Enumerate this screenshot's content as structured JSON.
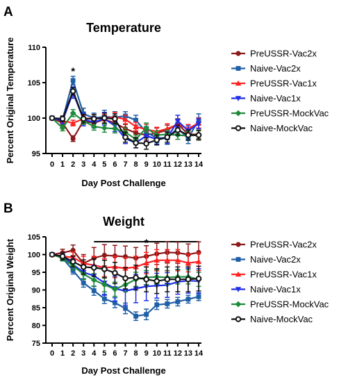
{
  "chart_data": [
    {
      "type": "line",
      "panel": "A",
      "title": "Temperature",
      "xlabel": "Day Post Challenge",
      "ylabel": "Percent Original Temperature",
      "ylim": [
        95,
        110
      ],
      "yticks": [
        95,
        100,
        105,
        110
      ],
      "x": [
        0,
        1,
        2,
        3,
        4,
        5,
        6,
        7,
        8,
        9,
        10,
        11,
        12,
        13,
        14
      ],
      "annotations": [
        {
          "text": "*",
          "x": 2,
          "y": 106.6
        }
      ],
      "legend": "right",
      "series": [
        {
          "name": "PreUSSR-Vac2x",
          "color": "#8b1a1a",
          "marker": "circle",
          "values": [
            100,
            99.3,
            97.1,
            99.6,
            99.3,
            99.8,
            99.3,
            98.5,
            97.9,
            97.6,
            97.9,
            98.3,
            99.2,
            97.7,
            97.7
          ],
          "errors": [
            0.2,
            0.4,
            0.4,
            0.5,
            0.5,
            0.6,
            0.7,
            0.6,
            0.6,
            0.7,
            0.7,
            0.7,
            0.7,
            0.6,
            0.6
          ]
        },
        {
          "name": "Naive-Vac2x",
          "color": "#1f5fa6",
          "marker": "square",
          "values": [
            100,
            99.8,
            105.3,
            100.6,
            100.0,
            100.2,
            100.1,
            100.3,
            99.7,
            98.0,
            97.2,
            97.2,
            98.6,
            97.1,
            99.8
          ],
          "errors": [
            0.2,
            0.4,
            0.6,
            0.8,
            0.7,
            0.9,
            0.8,
            0.6,
            0.7,
            0.8,
            0.7,
            0.9,
            0.8,
            0.7,
            0.8
          ]
        },
        {
          "name": "PreUSSR-Vac1x",
          "color": "#ff2020",
          "marker": "triangle",
          "values": [
            100,
            99.6,
            99.3,
            99.9,
            100.0,
            99.9,
            100.2,
            99.8,
            98.8,
            98.4,
            98.1,
            98.5,
            99.1,
            98.5,
            99.3
          ],
          "errors": [
            0.2,
            0.4,
            0.4,
            0.5,
            0.5,
            0.6,
            0.6,
            0.6,
            0.6,
            0.7,
            0.6,
            0.7,
            0.6,
            0.6,
            0.7
          ]
        },
        {
          "name": "Naive-Vac1x",
          "color": "#1f2ee8",
          "marker": "triangle-down",
          "values": [
            100,
            99.6,
            103.6,
            99.8,
            99.4,
            99.9,
            98.9,
            97.1,
            96.5,
            97.5,
            97.0,
            97.2,
            99.6,
            98.2,
            99.2
          ],
          "errors": [
            0.2,
            0.4,
            0.8,
            0.9,
            0.8,
            0.9,
            0.8,
            0.7,
            0.7,
            0.8,
            0.7,
            0.8,
            0.8,
            0.7,
            0.7
          ]
        },
        {
          "name": "PreUSSR-MockVac",
          "color": "#1f8a3a",
          "marker": "diamond",
          "values": [
            100,
            98.6,
            100.7,
            99.6,
            98.8,
            98.6,
            98.5,
            98.0,
            97.0,
            98.6,
            97.6,
            97.7,
            97.6,
            97.5,
            97.6
          ],
          "errors": [
            0.2,
            0.4,
            0.5,
            0.5,
            0.5,
            0.6,
            0.6,
            0.6,
            0.6,
            0.7,
            0.6,
            0.6,
            0.6,
            0.6,
            0.6
          ]
        },
        {
          "name": "Naive-MockVac",
          "color": "#111111",
          "marker": "circle-open",
          "values": [
            100,
            99.9,
            103.8,
            99.9,
            99.9,
            100.0,
            99.9,
            97.3,
            96.5,
            96.4,
            96.9,
            97.3,
            98.3,
            97.6,
            97.6
          ],
          "errors": [
            0.2,
            0.4,
            0.5,
            0.6,
            0.6,
            0.7,
            0.7,
            0.7,
            0.7,
            0.8,
            0.7,
            0.7,
            0.7,
            0.7,
            0.7
          ]
        }
      ]
    },
    {
      "type": "line",
      "panel": "B",
      "title": "Weight",
      "xlabel": "Day Post Challenge",
      "ylabel": "Percent Original Weight",
      "ylim": [
        75,
        105
      ],
      "yticks": [
        75,
        80,
        85,
        90,
        95,
        100,
        105
      ],
      "x": [
        0,
        1,
        2,
        3,
        4,
        5,
        6,
        7,
        8,
        9,
        10,
        11,
        12,
        13,
        14
      ],
      "annotations": [
        {
          "text": "*",
          "x": 9,
          "y": 103.3
        }
      ],
      "significance_bar": [
        4,
        14
      ],
      "legend": "right",
      "series": [
        {
          "name": "PreUSSR-Vac2x",
          "color": "#8b1a1a",
          "marker": "circle",
          "values": [
            100,
            100.5,
            101.2,
            97.5,
            99.0,
            99.8,
            99.6,
            99.4,
            99.0,
            99.5,
            100.2,
            100.6,
            100.5,
            100.0,
            100.6
          ],
          "errors": [
            0.3,
            1.0,
            1.5,
            2.5,
            3.0,
            3.0,
            3.0,
            3.0,
            3.0,
            3.0,
            3.0,
            3.0,
            3.0,
            3.0,
            3.0
          ]
        },
        {
          "name": "Naive-Vac2x",
          "color": "#1f5fa6",
          "marker": "square",
          "values": [
            100,
            99.0,
            95.5,
            92.0,
            89.8,
            87.5,
            86.4,
            84.8,
            82.6,
            83.1,
            85.8,
            86.1,
            86.7,
            87.4,
            88.1
          ],
          "errors": [
            0.3,
            0.8,
            1.0,
            1.2,
            1.3,
            1.3,
            1.4,
            1.5,
            1.2,
            1.5,
            1.3,
            1.2,
            1.2,
            1.1,
            1.1
          ]
        },
        {
          "name": "PreUSSR-Vac1x",
          "color": "#ff2020",
          "marker": "triangle",
          "values": [
            100,
            99.5,
            99.2,
            97.5,
            97.0,
            96.3,
            96.5,
            96.1,
            96.5,
            97.6,
            98.4,
            98.4,
            98.4,
            97.6,
            98.0
          ],
          "errors": [
            0.3,
            1.0,
            1.5,
            2.0,
            2.5,
            2.5,
            3.0,
            3.0,
            3.0,
            3.0,
            3.0,
            3.0,
            3.0,
            2.5,
            2.5
          ]
        },
        {
          "name": "Naive-Vac1x",
          "color": "#1f2ee8",
          "marker": "triangle-down",
          "values": [
            100,
            99.4,
            97.2,
            95.0,
            94.0,
            92.0,
            90.4,
            89.7,
            90.4,
            91.0,
            91.2,
            91.4,
            92.3,
            92.6,
            92.5
          ],
          "errors": [
            0.3,
            1.0,
            1.5,
            2.0,
            3.0,
            3.5,
            3.5,
            4.0,
            4.0,
            4.0,
            3.5,
            3.5,
            3.5,
            3.5,
            3.5
          ]
        },
        {
          "name": "PreUSSR-MockVac",
          "color": "#1f8a3a",
          "marker": "diamond",
          "values": [
            100,
            99.0,
            96.8,
            94.5,
            92.8,
            91.5,
            90.2,
            91.5,
            93.0,
            93.5,
            93.7,
            93.5,
            93.7,
            93.7,
            93.0
          ],
          "errors": [
            0.3,
            0.8,
            1.2,
            1.5,
            1.8,
            2.0,
            2.0,
            2.0,
            2.0,
            2.0,
            2.0,
            2.0,
            2.0,
            2.0,
            2.0
          ]
        },
        {
          "name": "Naive-MockVac",
          "color": "#111111",
          "marker": "circle-open",
          "values": [
            100,
            99.5,
            98.0,
            96.5,
            96.3,
            95.9,
            94.8,
            93.3,
            93.5,
            93.0,
            92.5,
            93.0,
            93.0,
            93.0,
            93.2
          ],
          "errors": [
            0.3,
            1.0,
            1.5,
            2.0,
            2.5,
            2.5,
            3.0,
            3.0,
            3.5,
            3.5,
            3.5,
            3.5,
            3.5,
            3.5,
            3.5
          ]
        }
      ]
    }
  ]
}
